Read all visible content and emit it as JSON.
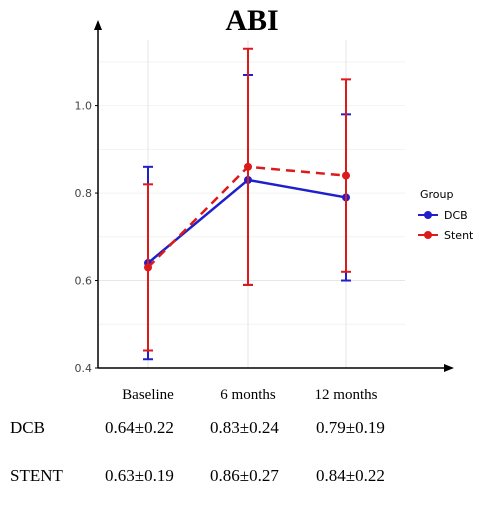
{
  "chart_data": {
    "type": "line",
    "title": "ABI",
    "xlabel": "",
    "ylabel": "",
    "categories": [
      "Baseline",
      "6 months",
      "12 months"
    ],
    "ylim": [
      0.4,
      1.15
    ],
    "yticks": [
      "0.4",
      "0.6",
      "0.8",
      "1.0"
    ],
    "grid": true,
    "legend": {
      "title": "Group",
      "position": "right"
    },
    "series": [
      {
        "name": "DCB",
        "color": "#1f1fcc",
        "linestyle": "solid",
        "values": [
          0.64,
          0.83,
          0.79
        ],
        "upper": [
          0.86,
          1.07,
          0.98
        ],
        "lower": [
          0.42,
          0.59,
          0.6
        ]
      },
      {
        "name": "Stent",
        "color": "#dd1a1a",
        "linestyle": "dashed",
        "values": [
          0.63,
          0.86,
          0.84
        ],
        "upper": [
          0.82,
          1.13,
          1.06
        ],
        "lower": [
          0.44,
          0.59,
          0.62
        ]
      }
    ]
  },
  "summary_table": {
    "rows": [
      {
        "label": "DCB",
        "cells": [
          "0.64±0.22",
          "0.83±0.24",
          "0.79±0.19"
        ]
      },
      {
        "label": "STENT",
        "cells": [
          "0.63±0.19",
          "0.86±0.27",
          "0.84±0.22"
        ]
      }
    ]
  }
}
